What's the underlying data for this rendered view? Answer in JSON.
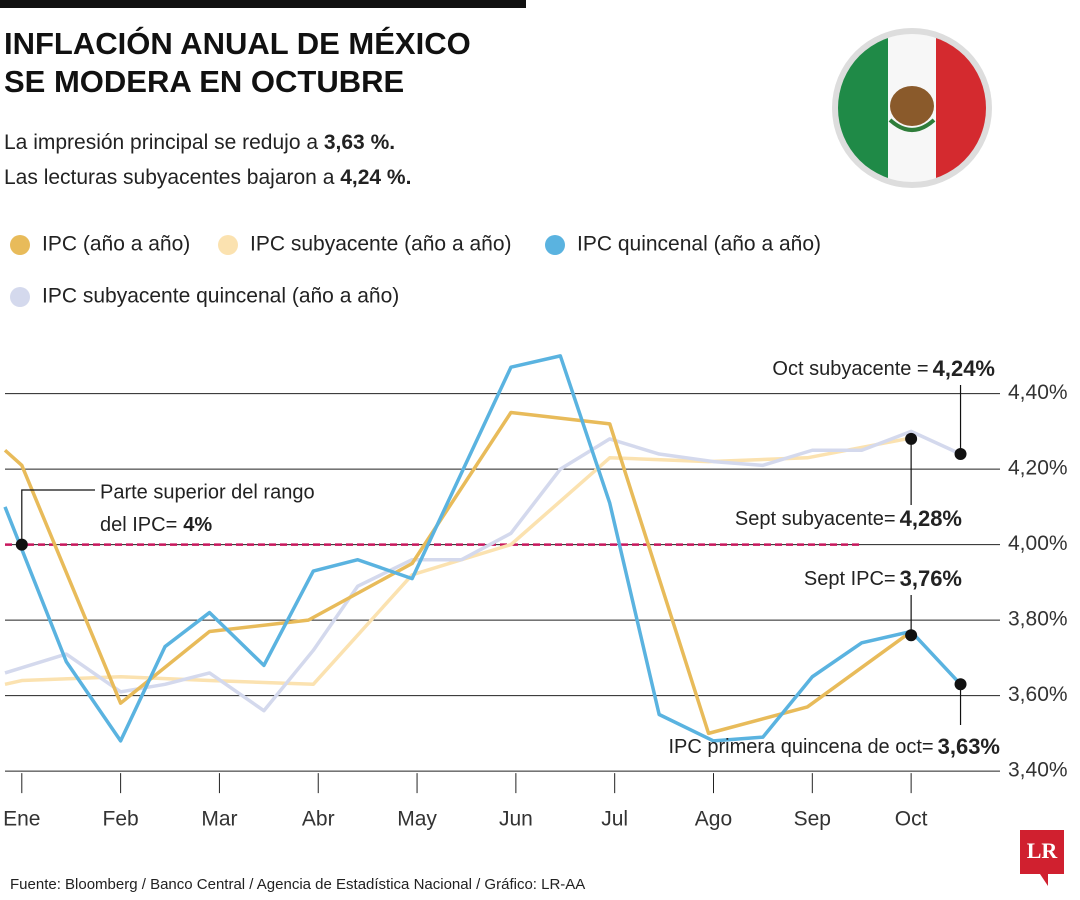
{
  "chart_data": {
    "type": "line",
    "title": [
      "INFLACIÓN ANUAL DE MÉXICO",
      "SE MODERA EN OCTUBRE"
    ],
    "subtitle": [
      {
        "text": "La impresión principal se redujo a",
        "bold": "3,63 %."
      },
      {
        "text": "Las lecturas subyacentes bajaron a",
        "bold": "4,24 %."
      }
    ],
    "xlim": [
      -0.17,
      9.95
    ],
    "xticks": [
      {
        "value": 0,
        "label": "Ene"
      },
      {
        "value": 1,
        "label": "Feb"
      },
      {
        "value": 2,
        "label": "Mar"
      },
      {
        "value": 3,
        "label": "Abr"
      },
      {
        "value": 4,
        "label": "May"
      },
      {
        "value": 5,
        "label": "Jun"
      },
      {
        "value": 6,
        "label": "Jul"
      },
      {
        "value": 7,
        "label": "Ago"
      },
      {
        "value": 8,
        "label": "Sep"
      },
      {
        "value": 9,
        "label": "Oct"
      }
    ],
    "ylim": [
      3.35,
      4.55
    ],
    "yticks": [
      {
        "value": 3.4,
        "label": "3,40%"
      },
      {
        "value": 3.6,
        "label": "3,60%"
      },
      {
        "value": 3.8,
        "label": "3,80%"
      },
      {
        "value": 4.0,
        "label": "4,00%"
      },
      {
        "value": 4.2,
        "label": "4,20%"
      },
      {
        "value": 4.4,
        "label": "4,40%"
      }
    ],
    "grid": true,
    "series": [
      {
        "name": "IPC (año a año)",
        "color": "#e8bb5a",
        "x": [
          -0.17,
          0,
          1,
          1.9,
          2.9,
          3.95,
          4.95,
          5.95,
          6.95,
          7.95,
          8.95
        ],
        "values": [
          4.25,
          4.21,
          3.58,
          3.77,
          3.8,
          3.95,
          4.35,
          4.32,
          3.5,
          3.57,
          3.76
        ]
      },
      {
        "name": "IPC subyacente (año a año)",
        "color": "#fbe2b0",
        "x": [
          -0.17,
          0,
          1,
          1.9,
          2.95,
          3.95,
          4.95,
          5.95,
          6.95,
          7.95,
          8.95
        ],
        "values": [
          3.63,
          3.64,
          3.65,
          3.64,
          3.63,
          3.92,
          4.0,
          4.23,
          4.22,
          4.23,
          4.28
        ]
      },
      {
        "name": "IPC quincenal (año a año)",
        "color": "#5ab3e0",
        "x": [
          -0.17,
          0.45,
          1,
          1.45,
          1.9,
          2.45,
          2.95,
          3.4,
          3.95,
          4.95,
          5.45,
          5.95,
          6.45,
          7,
          7.5,
          8,
          8.5,
          9,
          9.5
        ],
        "values": [
          4.1,
          3.69,
          3.48,
          3.73,
          3.82,
          3.68,
          3.93,
          3.96,
          3.91,
          4.47,
          4.5,
          4.11,
          3.55,
          3.48,
          3.49,
          3.65,
          3.74,
          3.77,
          3.63
        ]
      },
      {
        "name": "IPC subyacente quincenal (año a año)",
        "color": "#d4d9ed",
        "x": [
          -0.17,
          0.2,
          0.45,
          1,
          1.45,
          1.9,
          2.45,
          2.95,
          3.4,
          3.95,
          4.45,
          4.95,
          5.45,
          5.95,
          6.45,
          7,
          7.5,
          8,
          8.5,
          9,
          9.5
        ],
        "values": [
          3.66,
          3.69,
          3.71,
          3.61,
          3.63,
          3.66,
          3.56,
          3.72,
          3.89,
          3.96,
          3.96,
          4.03,
          4.2,
          4.28,
          4.24,
          4.22,
          4.21,
          4.25,
          4.25,
          4.3,
          4.24
        ]
      }
    ],
    "reference_line": {
      "y": 4,
      "color": "#c8175d",
      "lines": [
        "Parte superior del rango",
        "del IPC="
      ],
      "value_label": "4%"
    },
    "annotations": [
      {
        "label": "Oct subyacente =",
        "value_label": "4,24%",
        "x": 9.5,
        "y": 4.24
      },
      {
        "label": "Sept subyacente=",
        "value_label": "4,28%",
        "x": 9,
        "y": 4.28
      },
      {
        "label": "Sept IPC=",
        "value_label": "3,76%",
        "x": 9,
        "y": 3.76
      },
      {
        "label": "IPC primera quincena de oct=",
        "value_label": "3,63%",
        "x": 9.5,
        "y": 3.63
      }
    ],
    "source": "Fuente: Bloomberg / Banco Central / Agencia de Estadística Nacional / Gráfico: LR-AA",
    "logo": "LR"
  }
}
